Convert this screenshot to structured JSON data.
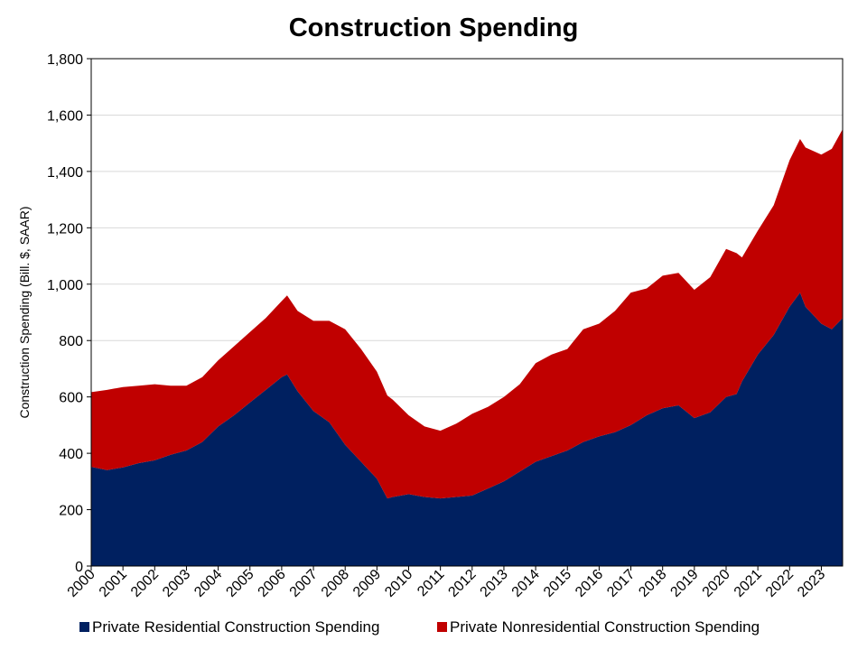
{
  "chart_data": {
    "type": "area",
    "stacked": true,
    "title": "Construction Spending",
    "ylabel": "Construction Spending (Bill. $, SAAR)",
    "xlabel": "",
    "xlim": [
      2000,
      2023.67
    ],
    "ylim": [
      0,
      1800
    ],
    "y_ticks": [
      "0",
      "200",
      "400",
      "600",
      "800",
      "1,000",
      "1,200",
      "1,400",
      "1,600",
      "1,800"
    ],
    "y_tick_values": [
      0,
      200,
      400,
      600,
      800,
      1000,
      1200,
      1400,
      1600,
      1800
    ],
    "x_ticks": [
      "2000",
      "2001",
      "2002",
      "2003",
      "2004",
      "2005",
      "2006",
      "2007",
      "2008",
      "2009",
      "2010",
      "2011",
      "2012",
      "2013",
      "2014",
      "2015",
      "2016",
      "2017",
      "2018",
      "2019",
      "2020",
      "2021",
      "2022",
      "2023"
    ],
    "x_tick_values": [
      2000,
      2001,
      2002,
      2003,
      2004,
      2005,
      2006,
      2007,
      2008,
      2009,
      2010,
      2011,
      2012,
      2013,
      2014,
      2015,
      2016,
      2017,
      2018,
      2019,
      2020,
      2021,
      2022,
      2023
    ],
    "grid": "horizontal",
    "legend_position": "bottom",
    "x": [
      2000.0,
      2000.5,
      2001.0,
      2001.5,
      2002.0,
      2002.5,
      2003.0,
      2003.5,
      2004.0,
      2004.5,
      2005.0,
      2005.5,
      2006.0,
      2006.17,
      2006.5,
      2007.0,
      2007.5,
      2008.0,
      2008.5,
      2009.0,
      2009.33,
      2009.5,
      2010.0,
      2010.5,
      2011.0,
      2011.5,
      2012.0,
      2012.5,
      2013.0,
      2013.5,
      2014.0,
      2014.5,
      2015.0,
      2015.5,
      2016.0,
      2016.5,
      2017.0,
      2017.5,
      2018.0,
      2018.5,
      2019.0,
      2019.5,
      2020.0,
      2020.33,
      2020.5,
      2021.0,
      2021.5,
      2022.0,
      2022.33,
      2022.5,
      2023.0,
      2023.33,
      2023.67
    ],
    "series": [
      {
        "name": "Private Residential Construction Spending",
        "color": "#002060",
        "values": [
          352,
          340,
          350,
          365,
          375,
          395,
          410,
          440,
          495,
          535,
          580,
          625,
          670,
          680,
          620,
          550,
          510,
          430,
          370,
          310,
          240,
          245,
          255,
          245,
          240,
          245,
          250,
          275,
          300,
          335,
          370,
          390,
          410,
          440,
          460,
          475,
          500,
          535,
          560,
          570,
          525,
          545,
          600,
          610,
          655,
          750,
          820,
          920,
          970,
          920,
          860,
          840,
          880
        ]
      },
      {
        "name": "Private Nonresidential Construction Spending",
        "color": "#C00000",
        "values": [
          265,
          285,
          285,
          275,
          270,
          245,
          230,
          230,
          235,
          245,
          250,
          255,
          270,
          280,
          285,
          320,
          360,
          410,
          400,
          380,
          365,
          345,
          280,
          250,
          240,
          260,
          290,
          290,
          300,
          310,
          350,
          360,
          360,
          400,
          400,
          430,
          470,
          450,
          470,
          470,
          455,
          480,
          525,
          500,
          440,
          440,
          460,
          520,
          545,
          565,
          600,
          640,
          670
        ]
      }
    ]
  }
}
